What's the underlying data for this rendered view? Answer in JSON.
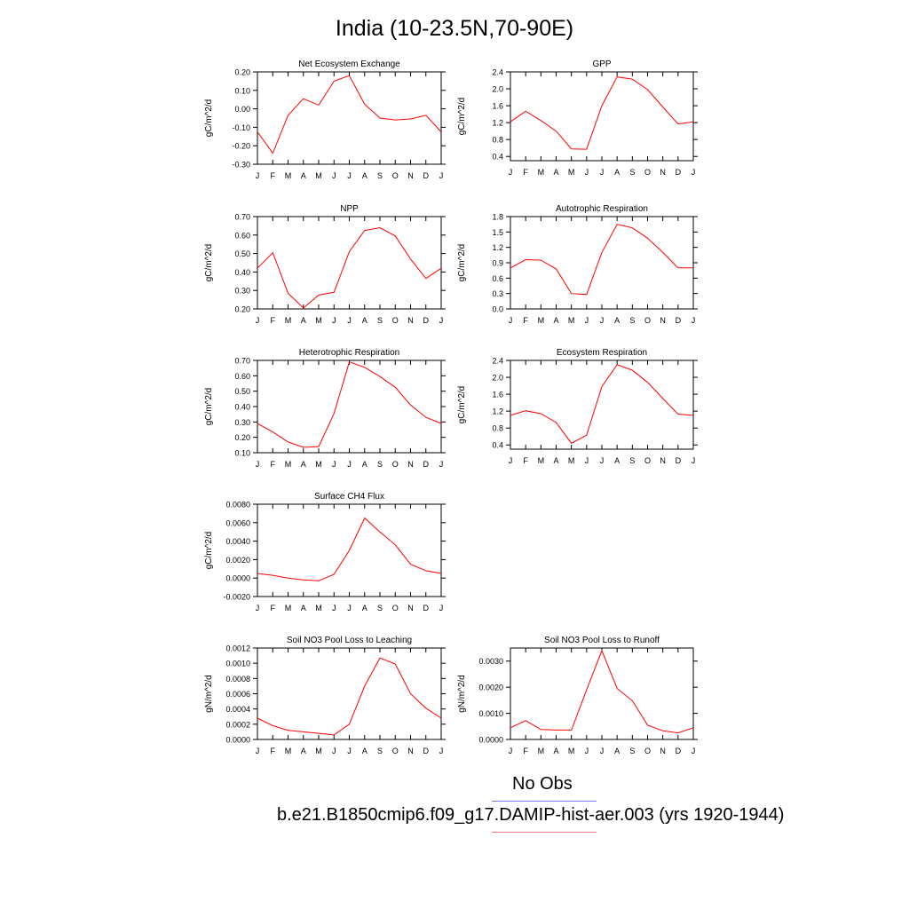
{
  "title": "India (10-23.5N,70-90E)",
  "month_labels": [
    "J",
    "F",
    "M",
    "A",
    "M",
    "J",
    "J",
    "A",
    "S",
    "O",
    "N",
    "D",
    "J"
  ],
  "legend": {
    "obs_label": "No Obs",
    "obs_color": "#7777ee",
    "case_label": "b.e21.B1850cmip6.f09_g17.DAMIP-hist-aer.003 (yrs 1920-1944)",
    "case_color": "#ff8080"
  },
  "line_color": "#ff0000",
  "chart_data": [
    {
      "type": "line",
      "title": "Net Ecosystem Exchange",
      "ylabel": "gC/m^2/d",
      "ylim": [
        -0.3,
        0.2
      ],
      "yticks": [
        "0.20",
        "0.10",
        "0.00",
        "-0.10",
        "-0.20",
        "-0.30"
      ],
      "x": [
        "J",
        "F",
        "M",
        "A",
        "M",
        "J",
        "J",
        "A",
        "S",
        "O",
        "N",
        "D",
        "J"
      ],
      "values": [
        -0.125,
        -0.24,
        -0.035,
        0.055,
        0.02,
        0.15,
        0.18,
        0.025,
        -0.05,
        -0.06,
        -0.055,
        -0.035,
        -0.125
      ]
    },
    {
      "type": "line",
      "title": "GPP",
      "ylabel": "gC/m^2/d",
      "ylim": [
        0.3,
        2.4
      ],
      "yticks": [
        "2.4",
        "2.0",
        "1.6",
        "1.2",
        "0.8",
        "0.4"
      ],
      "x": [
        "J",
        "F",
        "M",
        "A",
        "M",
        "J",
        "J",
        "A",
        "S",
        "O",
        "N",
        "D",
        "J"
      ],
      "values": [
        1.22,
        1.47,
        1.25,
        1.0,
        0.58,
        0.57,
        1.6,
        2.28,
        2.23,
        1.98,
        1.57,
        1.17,
        1.22
      ]
    },
    {
      "type": "line",
      "title": "NPP",
      "ylabel": "gC/m^2/d",
      "ylim": [
        0.2,
        0.7
      ],
      "yticks": [
        "0.70",
        "0.60",
        "0.50",
        "0.40",
        "0.30",
        "0.20"
      ],
      "x": [
        "J",
        "F",
        "M",
        "A",
        "M",
        "J",
        "J",
        "A",
        "S",
        "O",
        "N",
        "D",
        "J"
      ],
      "values": [
        0.42,
        0.505,
        0.285,
        0.205,
        0.275,
        0.29,
        0.51,
        0.625,
        0.64,
        0.595,
        0.47,
        0.365,
        0.42
      ]
    },
    {
      "type": "line",
      "title": "Autotrophic Respiration",
      "ylabel": "gC/m^2/d",
      "ylim": [
        0.0,
        1.8
      ],
      "yticks": [
        "1.8",
        "1.5",
        "1.2",
        "0.9",
        "0.6",
        "0.3",
        "0.0"
      ],
      "x": [
        "J",
        "F",
        "M",
        "A",
        "M",
        "J",
        "J",
        "A",
        "S",
        "O",
        "N",
        "D",
        "J"
      ],
      "values": [
        0.8,
        0.96,
        0.95,
        0.78,
        0.3,
        0.28,
        1.1,
        1.65,
        1.58,
        1.38,
        1.1,
        0.8,
        0.8
      ]
    },
    {
      "type": "line",
      "title": "Heterotrophic Respiration",
      "ylabel": "gC/m^2/d",
      "ylim": [
        0.1,
        0.7
      ],
      "yticks": [
        "0.70",
        "0.60",
        "0.50",
        "0.40",
        "0.30",
        "0.20",
        "0.10"
      ],
      "x": [
        "J",
        "F",
        "M",
        "A",
        "M",
        "J",
        "J",
        "A",
        "S",
        "O",
        "N",
        "D",
        "J"
      ],
      "values": [
        0.29,
        0.235,
        0.17,
        0.135,
        0.14,
        0.355,
        0.69,
        0.655,
        0.595,
        0.525,
        0.41,
        0.33,
        0.29
      ]
    },
    {
      "type": "line",
      "title": "Ecosystem Respiration",
      "ylabel": "gC/m^2/d",
      "ylim": [
        0.3,
        2.4
      ],
      "yticks": [
        "2.4",
        "2.0",
        "1.6",
        "1.2",
        "0.8",
        "0.4"
      ],
      "x": [
        "J",
        "F",
        "M",
        "A",
        "M",
        "J",
        "J",
        "A",
        "S",
        "O",
        "N",
        "D",
        "J"
      ],
      "values": [
        1.1,
        1.21,
        1.14,
        0.93,
        0.44,
        0.63,
        1.78,
        2.3,
        2.17,
        1.88,
        1.5,
        1.13,
        1.1
      ]
    },
    {
      "type": "line",
      "title": "Surface CH4 Flux",
      "ylabel": "gC/m^2/d",
      "ylim": [
        -0.002,
        0.008
      ],
      "yticks": [
        "0.0080",
        "0.0060",
        "0.0040",
        "0.0020",
        "0.0000",
        "-0.0020"
      ],
      "x": [
        "J",
        "F",
        "M",
        "A",
        "M",
        "J",
        "J",
        "A",
        "S",
        "O",
        "N",
        "D",
        "J"
      ],
      "values": [
        0.0005,
        0.0003,
        0.0,
        -0.0002,
        -0.0003,
        0.0004,
        0.003,
        0.0065,
        0.005,
        0.0036,
        0.0015,
        0.0008,
        0.0005
      ]
    },
    {
      "type": "line",
      "title": "Soil NO3 Pool Loss to Leaching",
      "ylabel": "gN/m^2/d",
      "ylim": [
        0.0,
        0.0012
      ],
      "yticks": [
        "0.0012",
        "0.0010",
        "0.0008",
        "0.0006",
        "0.0004",
        "0.0002",
        "0.0000"
      ],
      "x": [
        "J",
        "F",
        "M",
        "A",
        "M",
        "J",
        "J",
        "A",
        "S",
        "O",
        "N",
        "D",
        "J"
      ],
      "values": [
        0.00028,
        0.00018,
        0.00012,
        0.0001,
        8e-05,
        6e-05,
        0.0002,
        0.0007,
        0.00107,
        0.00099,
        0.0006,
        0.00041,
        0.00028
      ]
    },
    {
      "type": "line",
      "title": "Soil NO3 Pool Loss to Runoff",
      "ylabel": "gN/m^2/d",
      "ylim": [
        0.0,
        0.0035
      ],
      "yticks": [
        "0.0030",
        "0.0020",
        "0.0010",
        "0.0000"
      ],
      "x": [
        "J",
        "F",
        "M",
        "A",
        "M",
        "J",
        "J",
        "A",
        "S",
        "O",
        "N",
        "D",
        "J"
      ],
      "values": [
        0.00045,
        0.00072,
        0.00038,
        0.00036,
        0.00036,
        0.0019,
        0.0034,
        0.00195,
        0.00148,
        0.00055,
        0.00033,
        0.00025,
        0.00045
      ]
    }
  ]
}
